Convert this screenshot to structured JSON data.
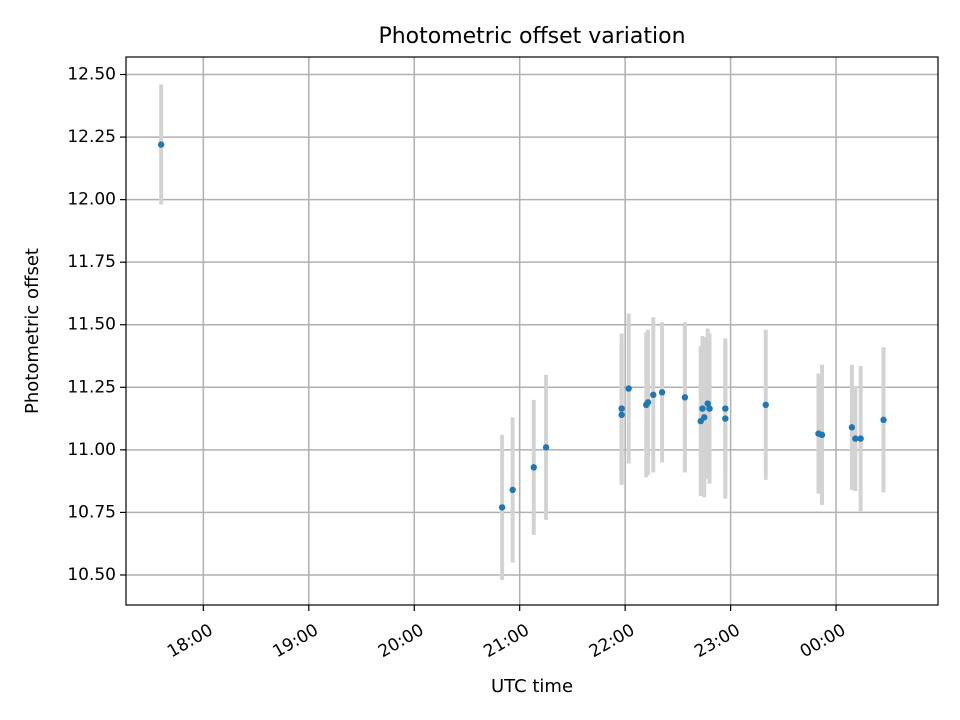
{
  "chart_data": {
    "type": "scatter",
    "title": "Photometric offset variation",
    "xlabel": "UTC time",
    "ylabel": "Photometric offset",
    "x_unit": "UTC time (HH:MM)",
    "x_ticks": [
      "18:00",
      "19:00",
      "20:00",
      "21:00",
      "22:00",
      "23:00",
      "00:00"
    ],
    "y_ticks": [
      "10.50",
      "10.75",
      "11.00",
      "11.25",
      "11.50",
      "11.75",
      "12.00",
      "12.25",
      "12.50"
    ],
    "xlim": [
      "17:16",
      "00:58"
    ],
    "ylim": [
      10.38,
      12.57
    ],
    "grid": true,
    "colors": {
      "marker": "#1f77b4",
      "errorbar": "#d3d3d3",
      "grid": "#b0b0b0"
    },
    "points": [
      {
        "x": "17:36",
        "y": 12.22,
        "err": 0.24
      },
      {
        "x": "20:50",
        "y": 10.77,
        "err": 0.29
      },
      {
        "x": "20:56",
        "y": 10.84,
        "err": 0.29
      },
      {
        "x": "21:08",
        "y": 10.93,
        "err": 0.27
      },
      {
        "x": "21:15",
        "y": 11.01,
        "err": 0.29
      },
      {
        "x": "21:58",
        "y": 11.14,
        "err": 0.28
      },
      {
        "x": "21:58",
        "y": 11.165,
        "err": 0.3
      },
      {
        "x": "22:02",
        "y": 11.245,
        "err": 0.3
      },
      {
        "x": "22:12",
        "y": 11.18,
        "err": 0.29
      },
      {
        "x": "22:13",
        "y": 11.19,
        "err": 0.29
      },
      {
        "x": "22:16",
        "y": 11.22,
        "err": 0.31
      },
      {
        "x": "22:21",
        "y": 11.23,
        "err": 0.28
      },
      {
        "x": "22:34",
        "y": 11.21,
        "err": 0.3
      },
      {
        "x": "22:43",
        "y": 11.115,
        "err": 0.3
      },
      {
        "x": "22:44",
        "y": 11.165,
        "err": 0.29
      },
      {
        "x": "22:45",
        "y": 11.13,
        "err": 0.32
      },
      {
        "x": "22:47",
        "y": 11.185,
        "err": 0.3
      },
      {
        "x": "22:48",
        "y": 11.165,
        "err": 0.3
      },
      {
        "x": "22:57",
        "y": 11.165,
        "err": 0.26
      },
      {
        "x": "22:57",
        "y": 11.125,
        "err": 0.32
      },
      {
        "x": "23:20",
        "y": 11.18,
        "err": 0.3
      },
      {
        "x": "23:50",
        "y": 11.065,
        "err": 0.24
      },
      {
        "x": "23:52",
        "y": 11.06,
        "err": 0.28
      },
      {
        "x": "00:09",
        "y": 11.09,
        "err": 0.25
      },
      {
        "x": "00:11",
        "y": 11.045,
        "err": 0.21
      },
      {
        "x": "00:14",
        "y": 11.045,
        "err": 0.29
      },
      {
        "x": "00:27",
        "y": 11.12,
        "err": 0.29
      }
    ]
  }
}
